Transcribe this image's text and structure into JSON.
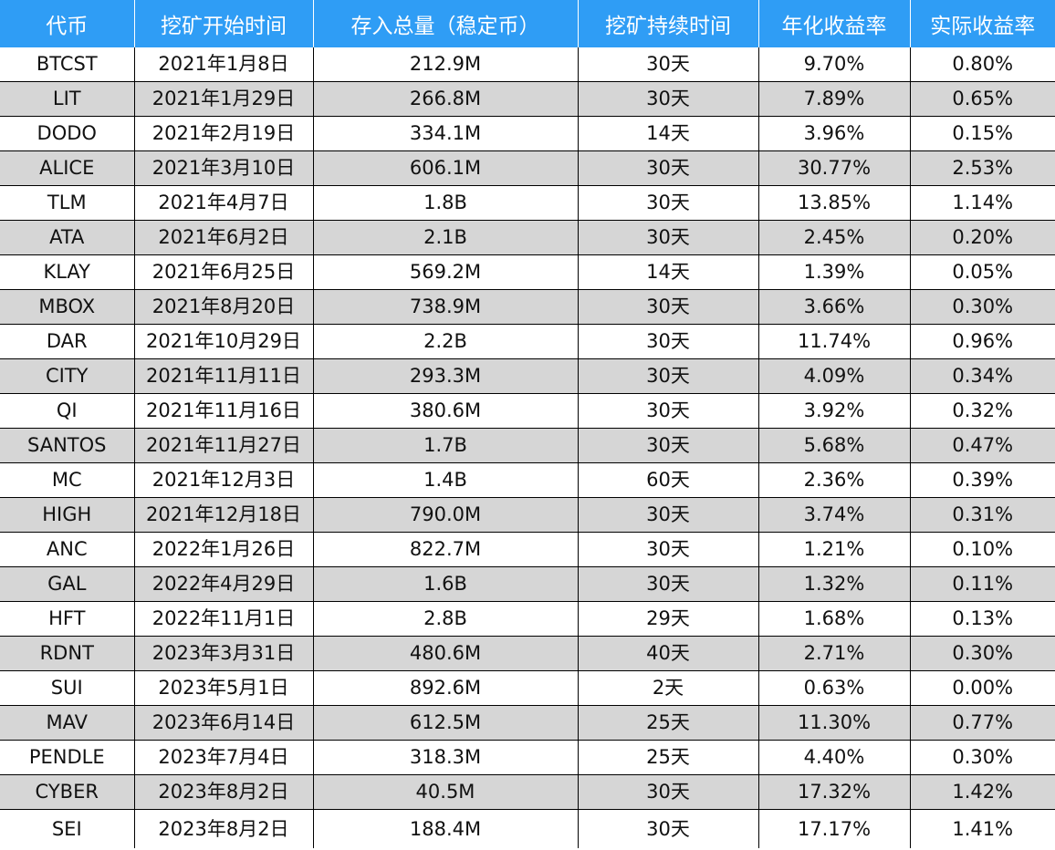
{
  "headers": [
    "代币",
    "挖矿开始时间",
    "存入总量（稳定币）",
    "挖矿持续时间",
    "年化收益率",
    "实际收益率"
  ],
  "rows": [
    [
      "BTCST",
      "2021年1月8日",
      "212.9M",
      "30天",
      "9.70%",
      "0.80%"
    ],
    [
      "LIT",
      "2021年1月29日",
      "266.8M",
      "30天",
      "7.89%",
      "0.65%"
    ],
    [
      "DODO",
      "2021年2月19日",
      "334.1M",
      "14天",
      "3.96%",
      "0.15%"
    ],
    [
      "ALICE",
      "2021年3月10日",
      "606.1M",
      "30天",
      "30.77%",
      "2.53%"
    ],
    [
      "TLM",
      "2021年4月7日",
      "1.8B",
      "30天",
      "13.85%",
      "1.14%"
    ],
    [
      "ATA",
      "2021年6月2日",
      "2.1B",
      "30天",
      "2.45%",
      "0.20%"
    ],
    [
      "KLAY",
      "2021年6月25日",
      "569.2M",
      "14天",
      "1.39%",
      "0.05%"
    ],
    [
      "MBOX",
      "2021年8月20日",
      "738.9M",
      "30天",
      "3.66%",
      "0.30%"
    ],
    [
      "DAR",
      "2021年10月29日",
      "2.2B",
      "30天",
      "11.74%",
      "0.96%"
    ],
    [
      "CITY",
      "2021年11月11日",
      "293.3M",
      "30天",
      "4.09%",
      "0.34%"
    ],
    [
      "QI",
      "2021年11月16日",
      "380.6M",
      "30天",
      "3.92%",
      "0.32%"
    ],
    [
      "SANTOS",
      "2021年11月27日",
      "1.7B",
      "30天",
      "5.68%",
      "0.47%"
    ],
    [
      "MC",
      "2021年12月3日",
      "1.4B",
      "60天",
      "2.36%",
      "0.39%"
    ],
    [
      "HIGH",
      "2021年12月18日",
      "790.0M",
      "30天",
      "3.74%",
      "0.31%"
    ],
    [
      "ANC",
      "2022年1月26日",
      "822.7M",
      "30天",
      "1.21%",
      "0.10%"
    ],
    [
      "GAL",
      "2022年4月29日",
      "1.6B",
      "30天",
      "1.32%",
      "0.11%"
    ],
    [
      "HFT",
      "2022年11月1日",
      "2.8B",
      "29天",
      "1.68%",
      "0.13%"
    ],
    [
      "RDNT",
      "2023年3月31日",
      "480.6M",
      "40天",
      "2.71%",
      "0.30%"
    ],
    [
      "SUI",
      "2023年5月1日",
      "892.6M",
      "2天",
      "0.63%",
      "0.00%"
    ],
    [
      "MAV",
      "2023年6月14日",
      "612.5M",
      "25天",
      "11.30%",
      "0.77%"
    ],
    [
      "PENDLE",
      "2023年7月4日",
      "318.3M",
      "25天",
      "4.40%",
      "0.30%"
    ],
    [
      "CYBER",
      "2023年8月2日",
      "40.5M",
      "30天",
      "17.32%",
      "1.42%"
    ],
    [
      "SEI",
      "2023年8月2日",
      "188.4M",
      "30天",
      "17.17%",
      "1.41%"
    ]
  ],
  "colors": {
    "header_bg": "#2f9df5",
    "header_text": "#ffffff",
    "stripe_bg": "#d6d6d6"
  }
}
